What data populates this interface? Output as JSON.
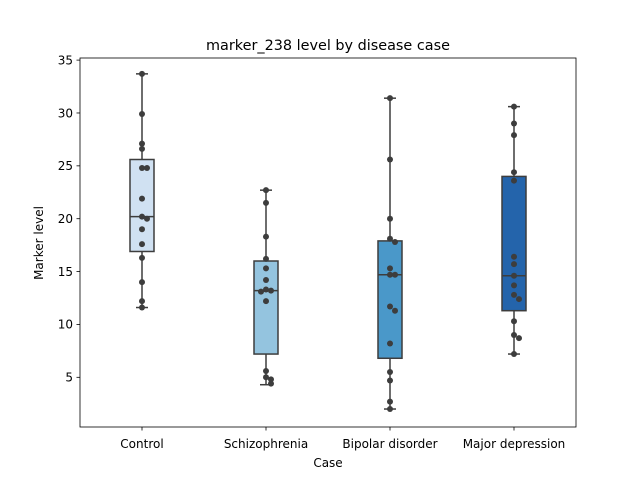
{
  "chart_data": {
    "type": "box",
    "title": "marker_238 level by disease case",
    "xlabel": "Case",
    "ylabel": "Marker level",
    "ylim": [
      0.3,
      35.2
    ],
    "yticks": [
      5,
      10,
      15,
      20,
      25,
      30,
      35
    ],
    "ytick_labels": [
      "5",
      "10",
      "15",
      "20",
      "25",
      "30",
      "35"
    ],
    "grid": false,
    "categories": [
      "Control",
      "Schizophrenia",
      "Bipolar disorder",
      "Major depression"
    ],
    "colors": [
      "#d0e1f2",
      "#94c4df",
      "#4a98c9",
      "#2464ab"
    ],
    "boxes": [
      {
        "whisker_low": 11.6,
        "q1": 16.9,
        "median": 20.2,
        "q3": 25.6,
        "whisker_high": 33.7
      },
      {
        "whisker_low": 4.3,
        "q1": 7.2,
        "median": 13.2,
        "q3": 16.0,
        "whisker_high": 22.7
      },
      {
        "whisker_low": 2.0,
        "q1": 6.8,
        "median": 14.7,
        "q3": 17.9,
        "whisker_high": 31.4
      },
      {
        "whisker_low": 7.2,
        "q1": 11.3,
        "median": 14.6,
        "q3": 24.0,
        "whisker_high": 30.6
      }
    ],
    "points": [
      [
        33.7,
        29.9,
        27.1,
        26.6,
        24.8,
        24.8,
        21.9,
        20.2,
        20.0,
        19.0,
        17.6,
        16.3,
        14.0,
        12.2,
        11.6
      ],
      [
        22.7,
        21.5,
        18.3,
        16.2,
        15.3,
        14.2,
        13.3,
        13.2,
        13.1,
        12.2,
        5.6,
        5.0,
        4.8,
        4.4
      ],
      [
        31.4,
        25.6,
        20.0,
        18.1,
        17.8,
        15.3,
        14.7,
        14.7,
        11.7,
        11.3,
        8.2,
        5.5,
        4.7,
        2.7,
        2.0
      ],
      [
        30.6,
        29.0,
        27.9,
        24.4,
        23.6,
        16.4,
        15.7,
        14.6,
        13.7,
        12.8,
        12.4,
        10.3,
        9.0,
        8.7,
        7.2
      ]
    ]
  }
}
